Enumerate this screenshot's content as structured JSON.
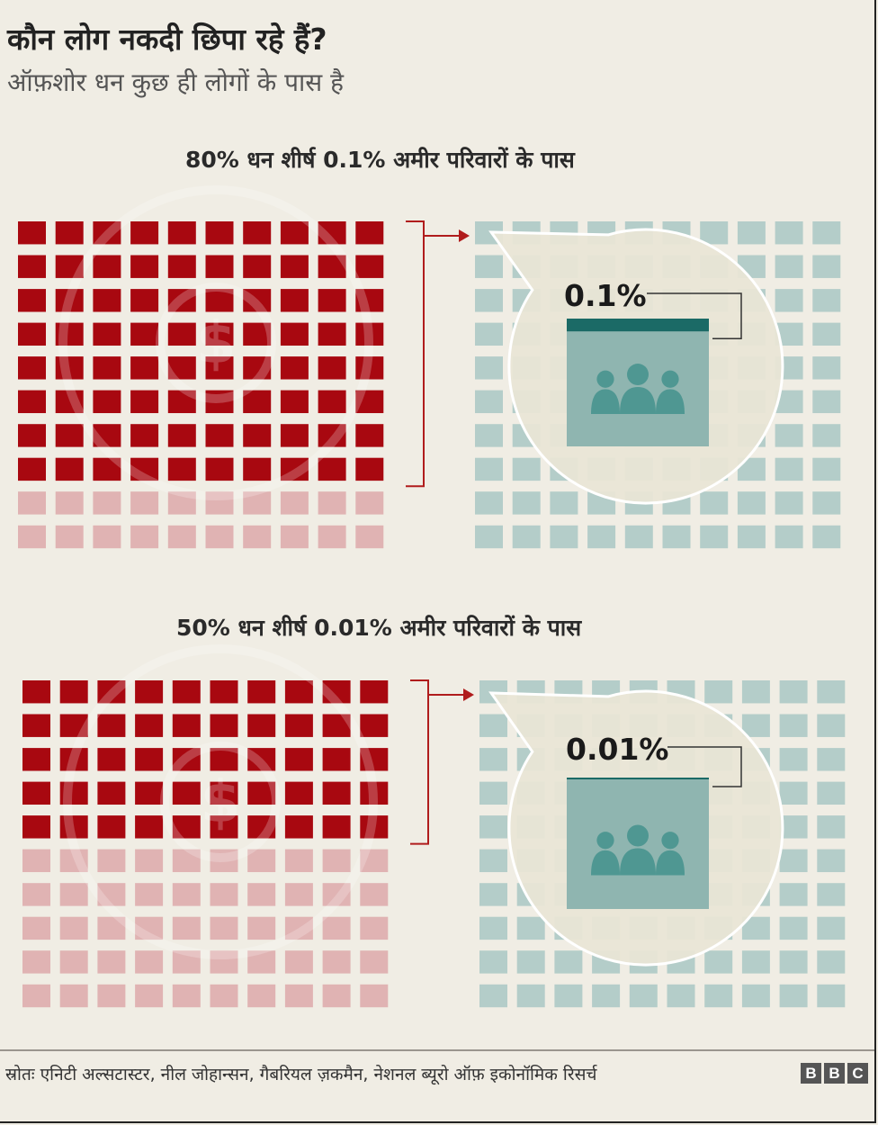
{
  "header": {
    "title": "कौन लोग नकदी छिपा रहे हैं?",
    "subtitle": "ऑफ़शोर धन कुछ ही लोगों के पास है"
  },
  "chart_data": [
    {
      "type": "waffle",
      "title": "80% धन शीर्ष 0.1% अमीर परिवारों के पास",
      "wealth_share_percent": 80,
      "households_share_percent": 0.1,
      "callout_label": "0.1%",
      "grid": {
        "rows": 10,
        "cols": 10
      }
    },
    {
      "type": "waffle",
      "title": "50% धन शीर्ष 0.01% अमीर परिवारों के पास",
      "wealth_share_percent": 50,
      "households_share_percent": 0.01,
      "callout_label": "0.01%",
      "grid": {
        "rows": 10,
        "cols": 10
      }
    }
  ],
  "colors": {
    "wealth_highlight": "#a80810",
    "wealth_rest": "#e0b3b3",
    "households_cell": "#b4cdc9",
    "households_highlight": "#1b6a66",
    "callout_fill": "#e9e5d6",
    "callout_box": "#8fb5b0",
    "people_icon": "#4f9792",
    "arrow": "#b01c1c",
    "background": "#f0ede4"
  },
  "icons": [
    "people-group-icon",
    "dollar-coin-icon",
    "arrow-right-icon"
  ],
  "footer": {
    "source": "स्रोतः एनिटी अल्सटास्टर, नील जोहान्सन, गैबरियल ज़कमैन, नेशनल ब्यूरो ऑफ़ इकोनॉमिक रिसर्च",
    "logo_letters": [
      "B",
      "B",
      "C"
    ]
  }
}
